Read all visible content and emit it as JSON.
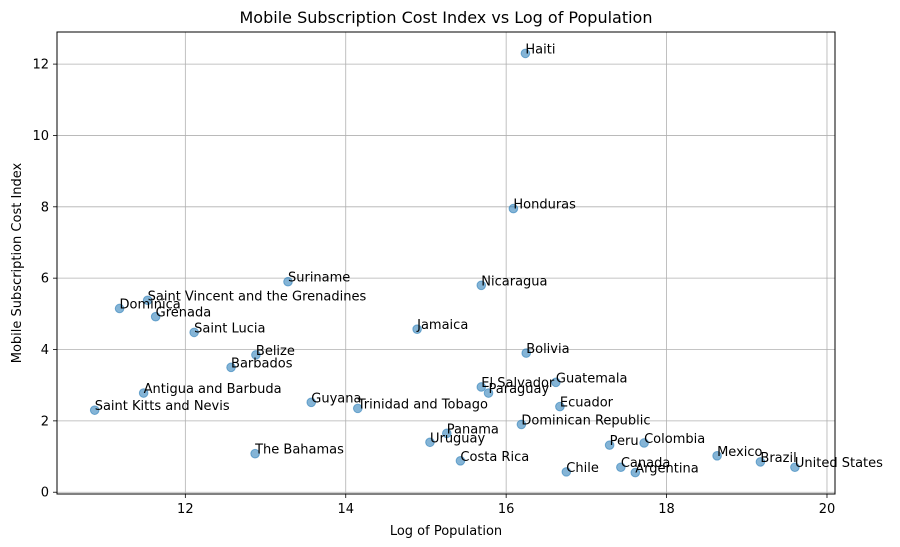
{
  "chart_data": {
    "type": "scatter",
    "title": "Mobile Subscription Cost Index vs Log of Population",
    "xlabel": "Log of Population",
    "ylabel": "Mobile Subscription Cost Index",
    "xlim": [
      10.4,
      20.1
    ],
    "ylim": [
      -0.05,
      12.9
    ],
    "xticks": [
      12,
      14,
      16,
      18,
      20
    ],
    "yticks": [
      0,
      2,
      4,
      6,
      8,
      10,
      12
    ],
    "grid": true,
    "marker_color": "#1f77b4",
    "points": [
      {
        "label": "Haiti",
        "x": 16.24,
        "y": 12.3
      },
      {
        "label": "Honduras",
        "x": 16.09,
        "y": 7.95
      },
      {
        "label": "Suriname",
        "x": 13.28,
        "y": 5.9
      },
      {
        "label": "Nicaragua",
        "x": 15.69,
        "y": 5.8
      },
      {
        "label": "Saint Vincent and the Grenadines",
        "x": 11.53,
        "y": 5.38
      },
      {
        "label": "Dominica",
        "x": 11.18,
        "y": 5.15
      },
      {
        "label": "Grenada",
        "x": 11.63,
        "y": 4.92
      },
      {
        "label": "Saint Lucia",
        "x": 12.11,
        "y": 4.48
      },
      {
        "label": "Jamaica",
        "x": 14.89,
        "y": 4.57
      },
      {
        "label": "Bolivia",
        "x": 16.25,
        "y": 3.9
      },
      {
        "label": "Belize",
        "x": 12.88,
        "y": 3.85
      },
      {
        "label": "Barbados",
        "x": 12.57,
        "y": 3.5
      },
      {
        "label": "Guatemala",
        "x": 16.62,
        "y": 3.08
      },
      {
        "label": "El Salvador",
        "x": 15.69,
        "y": 2.95
      },
      {
        "label": "Paraguay",
        "x": 15.78,
        "y": 2.78
      },
      {
        "label": "Antigua and Barbuda",
        "x": 11.48,
        "y": 2.78
      },
      {
        "label": "Guyana",
        "x": 13.57,
        "y": 2.52
      },
      {
        "label": "Trinidad and Tobago",
        "x": 14.15,
        "y": 2.35
      },
      {
        "label": "Ecuador",
        "x": 16.67,
        "y": 2.4
      },
      {
        "label": "Saint Kitts and Nevis",
        "x": 10.87,
        "y": 2.3
      },
      {
        "label": "Dominican Republic",
        "x": 16.19,
        "y": 1.9
      },
      {
        "label": "Panama",
        "x": 15.26,
        "y": 1.65
      },
      {
        "label": "Uruguay",
        "x": 15.05,
        "y": 1.4
      },
      {
        "label": "Colombia",
        "x": 17.72,
        "y": 1.38
      },
      {
        "label": "Peru",
        "x": 17.29,
        "y": 1.32
      },
      {
        "label": "The Bahamas",
        "x": 12.87,
        "y": 1.08
      },
      {
        "label": "Mexico",
        "x": 18.63,
        "y": 1.02
      },
      {
        "label": "Brazil",
        "x": 19.17,
        "y": 0.85
      },
      {
        "label": "Costa Rica",
        "x": 15.43,
        "y": 0.88
      },
      {
        "label": "United States",
        "x": 19.6,
        "y": 0.7
      },
      {
        "label": "Canada",
        "x": 17.43,
        "y": 0.7
      },
      {
        "label": "Chile",
        "x": 16.75,
        "y": 0.57
      },
      {
        "label": "Argentina",
        "x": 17.61,
        "y": 0.55
      }
    ]
  }
}
